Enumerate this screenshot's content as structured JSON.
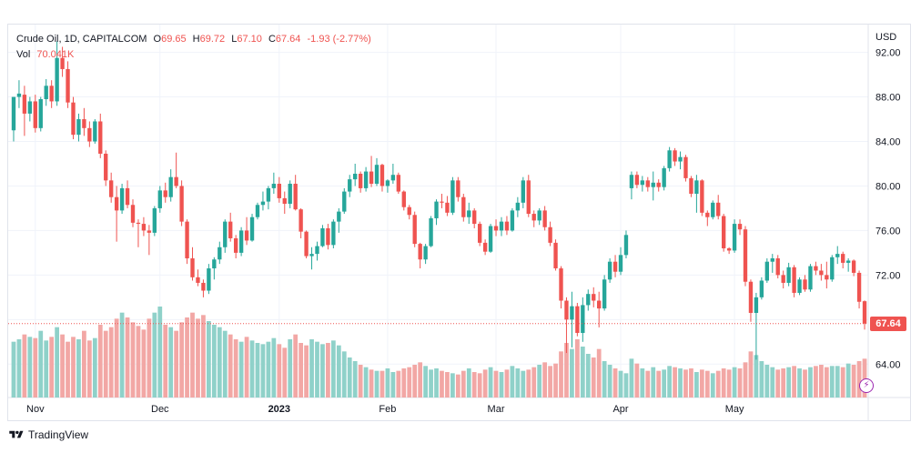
{
  "legend": {
    "symbol": "Crude Oil, 1D, CAPITALCOM",
    "open_label": "O",
    "open": "69.65",
    "high_label": "H",
    "high": "69.72",
    "low_label": "L",
    "low": "67.10",
    "close_label": "C",
    "close": "67.64",
    "change": "-1.93 (-2.77%)",
    "vol_label": "Vol",
    "vol": "70.041K"
  },
  "currency": "USD",
  "last_price": "67.64",
  "brand": "TradingView",
  "colors": {
    "up": "#26a69a",
    "down": "#ef5350",
    "up_vol": "#8fd1c9",
    "down_vol": "#f2a7a5"
  },
  "chart_data": {
    "type": "candlestick",
    "y_ticks": [
      "64.00",
      "68.00",
      "72.00",
      "76.00",
      "80.00",
      "84.00",
      "88.00",
      "92.00"
    ],
    "ylim": [
      61,
      94.5
    ],
    "x_ticks": [
      "Nov",
      "Dec",
      "2023",
      "Feb",
      "Mar",
      "Apr",
      "May"
    ],
    "x_tick_index": [
      4,
      27,
      49,
      69,
      89,
      112,
      133
    ],
    "last_close": 67.64,
    "candles": [
      [
        85.0,
        88.0,
        84.0,
        88.0,
        46
      ],
      [
        88.0,
        89.5,
        87.0,
        88.3,
        48
      ],
      [
        88.2,
        89.0,
        84.5,
        86.5,
        52
      ],
      [
        86.5,
        88.0,
        85.8,
        87.6,
        50
      ],
      [
        87.6,
        88.2,
        84.8,
        85.2,
        49
      ],
      [
        85.2,
        88.0,
        84.9,
        87.8,
        55
      ],
      [
        87.8,
        89.6,
        87.2,
        89.0,
        47
      ],
      [
        89.0,
        89.5,
        87.0,
        87.6,
        50
      ],
      [
        87.6,
        93.0,
        87.2,
        91.5,
        58
      ],
      [
        91.5,
        92.5,
        89.8,
        90.5,
        52
      ],
      [
        90.5,
        91.2,
        87.0,
        87.5,
        46
      ],
      [
        87.5,
        88.0,
        84.2,
        84.6,
        50
      ],
      [
        84.6,
        86.5,
        84.0,
        86.0,
        48
      ],
      [
        86.0,
        87.0,
        84.5,
        85.2,
        55
      ],
      [
        85.2,
        85.8,
        83.5,
        84.0,
        47
      ],
      [
        84.0,
        86.0,
        83.8,
        85.8,
        49
      ],
      [
        85.8,
        86.5,
        82.5,
        82.9,
        60
      ],
      [
        82.9,
        83.2,
        80.0,
        80.5,
        55
      ],
      [
        80.5,
        81.2,
        78.5,
        79.0,
        58
      ],
      [
        79.0,
        80.0,
        75.0,
        77.8,
        65
      ],
      [
        77.8,
        80.2,
        77.5,
        79.8,
        70
      ],
      [
        79.8,
        80.5,
        78.0,
        78.3,
        66
      ],
      [
        78.3,
        78.8,
        76.3,
        76.7,
        62
      ],
      [
        76.7,
        77.0,
        74.5,
        76.6,
        59
      ],
      [
        76.6,
        77.2,
        75.5,
        76.0,
        56
      ],
      [
        76.0,
        76.5,
        73.8,
        75.8,
        65
      ],
      [
        75.8,
        78.2,
        75.5,
        78.0,
        70
      ],
      [
        78.0,
        80.0,
        77.6,
        79.6,
        75
      ],
      [
        79.6,
        80.3,
        78.5,
        79.0,
        60
      ],
      [
        79.0,
        81.5,
        78.6,
        80.8,
        58
      ],
      [
        80.8,
        83.0,
        79.8,
        80.0,
        55
      ],
      [
        80.0,
        80.5,
        76.4,
        76.8,
        62
      ],
      [
        76.8,
        77.0,
        73.0,
        73.5,
        66
      ],
      [
        73.5,
        74.5,
        71.5,
        71.8,
        70
      ],
      [
        71.8,
        72.5,
        71.0,
        71.3,
        65
      ],
      [
        71.3,
        71.6,
        70.0,
        70.6,
        68
      ],
      [
        70.6,
        73.0,
        70.3,
        72.6,
        63
      ],
      [
        72.6,
        73.6,
        71.6,
        73.4,
        60
      ],
      [
        73.4,
        75.0,
        73.0,
        74.5,
        58
      ],
      [
        74.5,
        77.0,
        74.0,
        76.8,
        55
      ],
      [
        76.8,
        77.6,
        75.0,
        75.3,
        52
      ],
      [
        75.3,
        75.6,
        73.5,
        74.0,
        48
      ],
      [
        74.0,
        76.3,
        73.7,
        76.0,
        46
      ],
      [
        76.0,
        77.2,
        74.7,
        75.1,
        50
      ],
      [
        75.1,
        77.5,
        75.0,
        77.2,
        47
      ],
      [
        77.2,
        78.5,
        77.0,
        78.3,
        45
      ],
      [
        78.3,
        79.5,
        77.8,
        78.6,
        44
      ],
      [
        78.6,
        80.0,
        77.9,
        79.8,
        46
      ],
      [
        79.8,
        81.2,
        79.3,
        80.2,
        49
      ],
      [
        80.2,
        80.8,
        78.5,
        78.9,
        44
      ],
      [
        78.9,
        79.5,
        77.5,
        78.4,
        41
      ],
      [
        78.4,
        80.5,
        78.0,
        80.2,
        48
      ],
      [
        80.2,
        81.0,
        77.8,
        77.9,
        52
      ],
      [
        77.9,
        78.0,
        75.3,
        75.9,
        45
      ],
      [
        75.9,
        76.0,
        73.5,
        73.7,
        43
      ],
      [
        73.7,
        74.5,
        72.5,
        73.9,
        48
      ],
      [
        73.9,
        75.0,
        73.3,
        74.6,
        46
      ],
      [
        74.6,
        76.5,
        74.5,
        76.2,
        44
      ],
      [
        76.2,
        76.6,
        74.3,
        74.7,
        45
      ],
      [
        74.7,
        77.0,
        74.4,
        76.8,
        47
      ],
      [
        76.8,
        78.0,
        75.8,
        77.7,
        43
      ],
      [
        77.7,
        79.8,
        77.5,
        79.5,
        38
      ],
      [
        79.5,
        81.0,
        79.0,
        80.6,
        33
      ],
      [
        80.6,
        82.0,
        80.0,
        81.1,
        30
      ],
      [
        81.1,
        81.3,
        79.4,
        79.8,
        27
      ],
      [
        79.8,
        81.7,
        79.5,
        81.3,
        25
      ],
      [
        81.3,
        82.7,
        79.9,
        80.2,
        23
      ],
      [
        80.2,
        82.5,
        80.0,
        81.9,
        22
      ],
      [
        81.9,
        82.0,
        79.5,
        80.0,
        22
      ],
      [
        80.0,
        80.6,
        79.4,
        80.5,
        24
      ],
      [
        80.5,
        82.0,
        80.2,
        81.0,
        21
      ],
      [
        81.0,
        81.2,
        79.3,
        79.5,
        22
      ],
      [
        79.5,
        79.6,
        77.8,
        78.1,
        24
      ],
      [
        78.1,
        78.3,
        77.0,
        77.4,
        25
      ],
      [
        77.4,
        77.7,
        74.5,
        74.8,
        27
      ],
      [
        74.8,
        74.9,
        72.6,
        73.4,
        29
      ],
      [
        73.4,
        74.8,
        73.0,
        74.6,
        26
      ],
      [
        74.6,
        77.3,
        74.5,
        77.1,
        23
      ],
      [
        77.1,
        78.8,
        76.5,
        78.6,
        24
      ],
      [
        78.6,
        79.3,
        78.0,
        78.5,
        22
      ],
      [
        78.5,
        79.1,
        77.3,
        77.6,
        21
      ],
      [
        77.6,
        80.8,
        77.4,
        80.5,
        20
      ],
      [
        80.5,
        80.8,
        78.6,
        79.0,
        19
      ],
      [
        79.0,
        79.3,
        76.8,
        77.2,
        22
      ],
      [
        77.2,
        78.5,
        76.6,
        77.8,
        24
      ],
      [
        77.8,
        78.0,
        76.2,
        76.6,
        21
      ],
      [
        76.6,
        76.8,
        74.6,
        74.9,
        20
      ],
      [
        74.9,
        75.2,
        73.8,
        74.1,
        23
      ],
      [
        74.1,
        76.6,
        74.0,
        76.4,
        25
      ],
      [
        76.4,
        77.0,
        75.5,
        76.0,
        22
      ],
      [
        76.0,
        77.2,
        75.5,
        76.8,
        21
      ],
      [
        76.8,
        77.3,
        75.6,
        76.0,
        23
      ],
      [
        76.0,
        78.0,
        75.9,
        77.8,
        26
      ],
      [
        77.8,
        79.0,
        77.2,
        78.5,
        24
      ],
      [
        78.5,
        80.8,
        78.0,
        80.5,
        22
      ],
      [
        80.5,
        81.0,
        77.2,
        77.5,
        23
      ],
      [
        77.5,
        77.8,
        76.3,
        76.9,
        25
      ],
      [
        76.9,
        78.0,
        76.5,
        77.8,
        27
      ],
      [
        77.8,
        78.2,
        76.0,
        76.3,
        29
      ],
      [
        76.3,
        76.8,
        74.6,
        74.9,
        26
      ],
      [
        74.9,
        75.2,
        72.4,
        72.6,
        28
      ],
      [
        72.6,
        72.8,
        69.0,
        69.7,
        38
      ],
      [
        69.7,
        70.0,
        65.0,
        68.0,
        45
      ],
      [
        68.0,
        70.5,
        65.5,
        69.2,
        40
      ],
      [
        69.2,
        69.5,
        66.5,
        66.8,
        48
      ],
      [
        66.8,
        70.0,
        66.0,
        69.3,
        42
      ],
      [
        69.3,
        70.7,
        68.8,
        70.3,
        36
      ],
      [
        70.3,
        70.9,
        69.1,
        69.7,
        33
      ],
      [
        69.7,
        70.5,
        67.3,
        69.0,
        40
      ],
      [
        69.0,
        72.0,
        68.8,
        71.6,
        30
      ],
      [
        71.6,
        73.5,
        71.3,
        73.2,
        27
      ],
      [
        73.2,
        73.8,
        71.8,
        72.3,
        24
      ],
      [
        72.3,
        74.5,
        72.0,
        73.8,
        22
      ],
      [
        73.8,
        76.0,
        73.5,
        75.6,
        20
      ],
      [
        79.8,
        81.3,
        78.8,
        81.0,
        32
      ],
      [
        81.0,
        81.3,
        79.8,
        80.1,
        28
      ],
      [
        80.1,
        80.9,
        79.5,
        80.5,
        24
      ],
      [
        80.5,
        80.8,
        79.5,
        79.9,
        22
      ],
      [
        79.9,
        81.3,
        78.7,
        80.3,
        25
      ],
      [
        80.3,
        80.6,
        79.5,
        79.9,
        22
      ],
      [
        79.9,
        81.8,
        79.6,
        81.6,
        23
      ],
      [
        81.6,
        83.5,
        81.3,
        83.2,
        26
      ],
      [
        83.2,
        83.4,
        81.8,
        82.2,
        25
      ],
      [
        82.2,
        83.1,
        81.5,
        82.6,
        24
      ],
      [
        82.6,
        82.8,
        80.4,
        80.7,
        23
      ],
      [
        80.7,
        80.9,
        79.0,
        79.3,
        24
      ],
      [
        79.3,
        81.0,
        77.6,
        80.5,
        21
      ],
      [
        80.5,
        80.6,
        77.3,
        77.6,
        23
      ],
      [
        77.6,
        77.8,
        76.4,
        77.2,
        22
      ],
      [
        77.2,
        78.7,
        77.0,
        78.5,
        20
      ],
      [
        78.5,
        79.2,
        77.0,
        77.3,
        22
      ],
      [
        77.3,
        77.5,
        74.1,
        74.4,
        24
      ],
      [
        74.4,
        74.5,
        73.9,
        74.2,
        23
      ],
      [
        74.2,
        77.0,
        74.0,
        76.6,
        25
      ],
      [
        76.6,
        77.0,
        75.6,
        76.1,
        24
      ],
      [
        76.1,
        76.4,
        71.0,
        71.4,
        29
      ],
      [
        71.4,
        71.6,
        67.8,
        68.6,
        38
      ],
      [
        68.6,
        70.4,
        64.4,
        70.0,
        35
      ],
      [
        70.0,
        71.8,
        69.8,
        71.5,
        30
      ],
      [
        71.5,
        73.5,
        71.3,
        73.2,
        27
      ],
      [
        73.2,
        73.9,
        72.2,
        73.5,
        25
      ],
      [
        73.5,
        73.8,
        71.7,
        72.0,
        23
      ],
      [
        72.0,
        72.4,
        70.8,
        71.3,
        24
      ],
      [
        71.3,
        73.1,
        71.0,
        72.7,
        25
      ],
      [
        72.7,
        72.9,
        70.0,
        70.4,
        26
      ],
      [
        70.4,
        71.8,
        70.2,
        71.6,
        24
      ],
      [
        71.6,
        72.0,
        70.5,
        70.7,
        23
      ],
      [
        70.7,
        73.0,
        70.5,
        72.8,
        25
      ],
      [
        72.8,
        73.2,
        72.0,
        72.4,
        26
      ],
      [
        72.4,
        73.0,
        71.5,
        72.0,
        27
      ],
      [
        72.0,
        73.2,
        70.8,
        71.6,
        25
      ],
      [
        71.6,
        73.8,
        71.4,
        73.6,
        26
      ],
      [
        73.6,
        74.6,
        73.0,
        73.9,
        26
      ],
      [
        73.9,
        74.1,
        72.6,
        73.1,
        25
      ],
      [
        73.1,
        73.5,
        72.3,
        73.3,
        28
      ],
      [
        73.3,
        73.4,
        71.9,
        72.2,
        27
      ],
      [
        72.2,
        72.4,
        69.0,
        69.6,
        30
      ],
      [
        69.65,
        69.72,
        67.1,
        67.64,
        32
      ]
    ]
  }
}
